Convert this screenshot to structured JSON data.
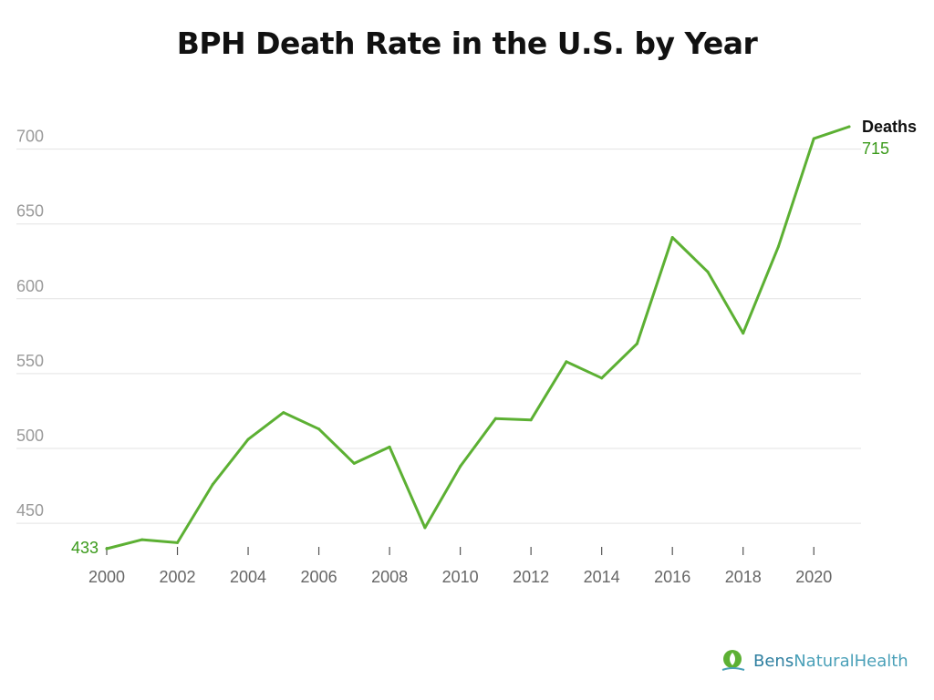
{
  "title": "BPH Death Rate in the U.S. by Year",
  "chart_data": {
    "type": "line",
    "x": [
      2000,
      2001,
      2002,
      2003,
      2004,
      2005,
      2006,
      2007,
      2008,
      2009,
      2010,
      2011,
      2012,
      2013,
      2014,
      2015,
      2016,
      2017,
      2018,
      2019,
      2020,
      2021
    ],
    "series": [
      {
        "name": "Deaths",
        "values": [
          433,
          439,
          437,
          476,
          506,
          524,
          513,
          490,
          501,
          447,
          488,
          520,
          519,
          558,
          547,
          570,
          641,
          618,
          577,
          635,
          707,
          715
        ],
        "color": "#5cb033"
      }
    ],
    "x_ticks": [
      "2000",
      "2002",
      "2004",
      "2006",
      "2008",
      "2010",
      "2012",
      "2014",
      "2016",
      "2018",
      "2020"
    ],
    "y_ticks": [
      "450",
      "500",
      "550",
      "600",
      "650",
      "700"
    ],
    "ylim": [
      433,
      715
    ],
    "grid": "horizontal",
    "first_value_label": "433",
    "last_value_label": "715",
    "legend_label": "Deaths",
    "colors": {
      "line": "#5cb033",
      "value_label": "#3a9a1a",
      "grid": "#e3e3e3",
      "tick_text": "#9a9a9a",
      "axis_text": "#666666"
    }
  },
  "brand": {
    "logo_icon": "leaf-icon",
    "name_first": "Bens",
    "name_rest": "NaturalHealth"
  }
}
